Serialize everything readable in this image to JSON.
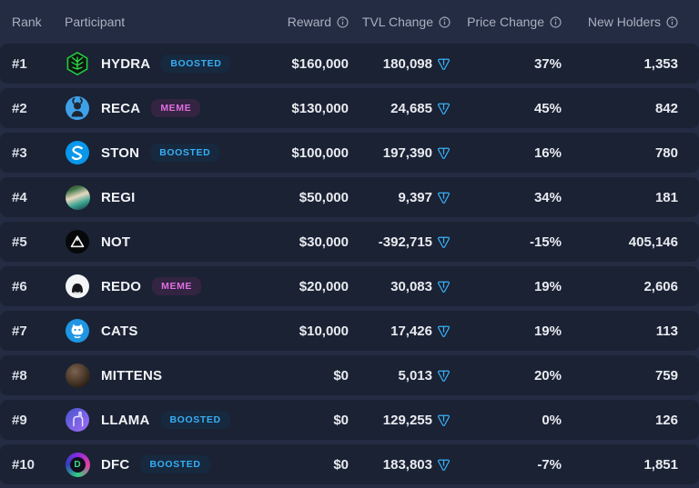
{
  "theme": {
    "page_bg": "#242c44",
    "row_bg": "#1a2234",
    "header_text": "#a9b0bf",
    "value_text": "#e9ebf0",
    "accent_blue": "#38aef5",
    "boosted_badge_bg": "#16293f",
    "meme_pink": "#de6fe2",
    "meme_badge_bg": "#332441",
    "ton_icon_blue": "#38b2f8"
  },
  "table": {
    "columns": [
      {
        "label": "Rank",
        "align": "left",
        "has_info_icon": false
      },
      {
        "label": "Participant",
        "align": "left",
        "has_info_icon": false
      },
      {
        "label": "Reward",
        "align": "right",
        "has_info_icon": true
      },
      {
        "label": "TVL Change",
        "align": "right",
        "has_info_icon": true
      },
      {
        "label": "Price Change",
        "align": "right",
        "has_info_icon": true
      },
      {
        "label": "New Holders",
        "align": "right",
        "has_info_icon": true
      }
    ],
    "tvl_currency_icon": "ton-icon",
    "rows": [
      {
        "rank": "#1",
        "name": "HYDRA",
        "avatar": {
          "icon": "hydra-hexagon-icon"
        },
        "badge": {
          "label": "BOOSTED",
          "type": "boosted"
        },
        "reward": "$160,000",
        "tvl_change": "180,098",
        "price_change": "37%",
        "new_holders": "1,353"
      },
      {
        "rank": "#2",
        "name": "RECA",
        "avatar": {
          "icon": "reca-avatar-icon"
        },
        "badge": {
          "label": "MEME",
          "type": "meme"
        },
        "reward": "$130,000",
        "tvl_change": "24,685",
        "price_change": "45%",
        "new_holders": "842"
      },
      {
        "rank": "#3",
        "name": "STON",
        "avatar": {
          "icon": "ston-avatar-icon"
        },
        "badge": {
          "label": "BOOSTED",
          "type": "boosted"
        },
        "reward": "$100,000",
        "tvl_change": "197,390",
        "price_change": "16%",
        "new_holders": "780"
      },
      {
        "rank": "#4",
        "name": "REGI",
        "avatar": {
          "icon": "regi-avatar-icon"
        },
        "badge": null,
        "reward": "$50,000",
        "tvl_change": "9,397",
        "price_change": "34%",
        "new_holders": "181"
      },
      {
        "rank": "#5",
        "name": "NOT",
        "avatar": {
          "icon": "not-avatar-icon"
        },
        "badge": null,
        "reward": "$30,000",
        "tvl_change": "-392,715",
        "price_change": "-15%",
        "new_holders": "405,146"
      },
      {
        "rank": "#6",
        "name": "REDO",
        "avatar": {
          "icon": "redo-avatar-icon"
        },
        "badge": {
          "label": "MEME",
          "type": "meme"
        },
        "reward": "$20,000",
        "tvl_change": "30,083",
        "price_change": "19%",
        "new_holders": "2,606"
      },
      {
        "rank": "#7",
        "name": "CATS",
        "avatar": {
          "icon": "cats-avatar-icon"
        },
        "badge": null,
        "reward": "$10,000",
        "tvl_change": "17,426",
        "price_change": "19%",
        "new_holders": "113"
      },
      {
        "rank": "#8",
        "name": "MITTENS",
        "avatar": {
          "icon": "mittens-avatar-icon"
        },
        "badge": null,
        "reward": "$0",
        "tvl_change": "5,013",
        "price_change": "20%",
        "new_holders": "759"
      },
      {
        "rank": "#9",
        "name": "LLAMA",
        "avatar": {
          "icon": "llama-avatar-icon"
        },
        "badge": {
          "label": "BOOSTED",
          "type": "boosted"
        },
        "reward": "$0",
        "tvl_change": "129,255",
        "price_change": "0%",
        "new_holders": "126"
      },
      {
        "rank": "#10",
        "name": "DFC",
        "avatar": {
          "icon": "dfc-avatar-icon"
        },
        "badge": {
          "label": "BOOSTED",
          "type": "boosted"
        },
        "reward": "$0",
        "tvl_change": "183,803",
        "price_change": "-7%",
        "new_holders": "1,851"
      }
    ]
  }
}
